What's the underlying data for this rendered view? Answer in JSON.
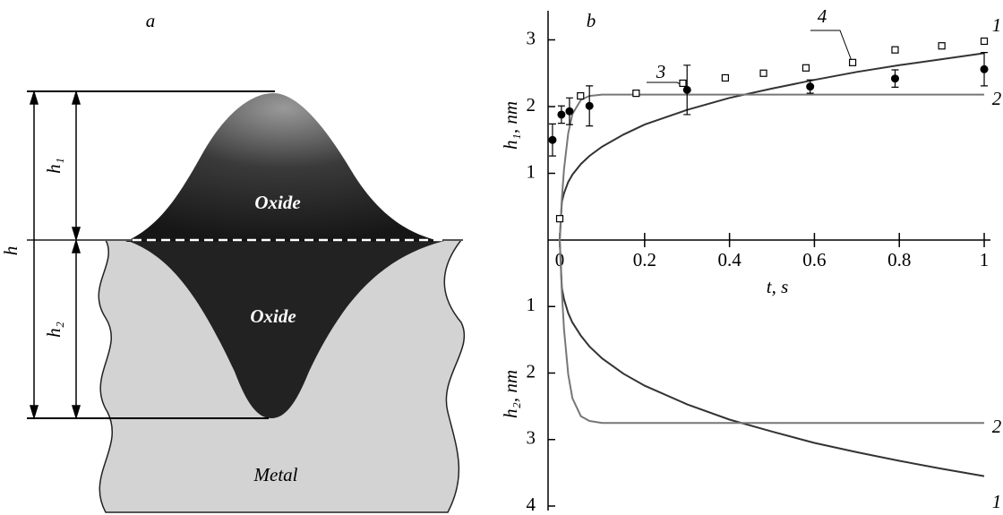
{
  "diagram": {
    "panel_label": "a",
    "labels": {
      "h": "h",
      "h1": "h₁",
      "h2": "h₂",
      "oxide_top": "Oxide",
      "oxide_bottom": "Oxide",
      "metal": "Metal"
    }
  },
  "chart_data": [
    {
      "type": "line",
      "panel_label": "b",
      "ylabel": "h₁, nm",
      "xlabel": "t, s",
      "xlim": [
        -0.03,
        1.02
      ],
      "xticks": [
        0,
        0.2,
        0.4,
        0.6,
        0.8,
        1
      ],
      "ylim": [
        0,
        3.4
      ],
      "yticks": [
        1,
        2,
        3
      ],
      "series": [
        {
          "name": "1",
          "type": "line",
          "color": "#333333",
          "x": [
            0,
            0.005,
            0.01,
            0.02,
            0.03,
            0.05,
            0.07,
            0.1,
            0.15,
            0.2,
            0.3,
            0.4,
            0.5,
            0.6,
            0.7,
            0.8,
            0.9,
            1
          ],
          "values": [
            0,
            0.57,
            0.7,
            0.87,
            0.98,
            1.14,
            1.26,
            1.4,
            1.58,
            1.73,
            1.95,
            2.13,
            2.27,
            2.4,
            2.52,
            2.62,
            2.71,
            2.8
          ]
        },
        {
          "name": "2",
          "type": "line",
          "color": "#777777",
          "x": [
            0,
            0.005,
            0.01,
            0.02,
            0.03,
            0.05,
            0.07,
            0.1,
            0.2,
            0.4,
            0.6,
            0.8,
            1
          ],
          "values": [
            0,
            0.62,
            1.06,
            1.6,
            1.89,
            2.1,
            2.16,
            2.18,
            2.18,
            2.18,
            2.18,
            2.18,
            2.18
          ]
        },
        {
          "name": "3",
          "type": "errorbar",
          "color": "#000000",
          "x": [
            -0.017,
            0.004,
            0.023,
            0.07,
            0.3,
            0.59,
            0.79,
            1.0
          ],
          "values": [
            1.5,
            1.88,
            1.93,
            2.01,
            2.25,
            2.3,
            2.42,
            2.56
          ],
          "errors": [
            0.24,
            0.13,
            0.2,
            0.3,
            0.37,
            0.1,
            0.13,
            0.25
          ]
        },
        {
          "name": "4",
          "type": "scatter",
          "color": "#000000",
          "x": [
            0.0,
            0.049,
            0.18,
            0.29,
            0.39,
            0.48,
            0.58,
            0.69,
            0.79,
            0.9,
            1.0
          ],
          "values": [
            0.32,
            2.16,
            2.2,
            2.35,
            2.43,
            2.5,
            2.58,
            2.66,
            2.85,
            2.91,
            2.98
          ]
        }
      ]
    },
    {
      "type": "line",
      "ylabel": "h₂, nm",
      "xlim": [
        -0.03,
        1.02
      ],
      "ylim": [
        4,
        0
      ],
      "yticks": [
        1,
        2,
        3,
        4
      ],
      "series": [
        {
          "name": "1",
          "type": "line",
          "color": "#333333",
          "x": [
            0,
            0.005,
            0.01,
            0.02,
            0.03,
            0.05,
            0.07,
            0.1,
            0.15,
            0.2,
            0.3,
            0.4,
            0.5,
            0.6,
            0.7,
            0.8,
            0.9,
            1
          ],
          "values": [
            0,
            0.72,
            0.89,
            1.1,
            1.24,
            1.44,
            1.6,
            1.78,
            2.01,
            2.19,
            2.47,
            2.7,
            2.88,
            3.05,
            3.19,
            3.32,
            3.44,
            3.55
          ]
        },
        {
          "name": "2",
          "type": "line",
          "color": "#777777",
          "x": [
            0,
            0.005,
            0.01,
            0.02,
            0.03,
            0.05,
            0.07,
            0.1,
            0.2,
            0.4,
            0.6,
            0.8,
            1
          ],
          "values": [
            0,
            0.78,
            1.34,
            2.02,
            2.38,
            2.65,
            2.72,
            2.75,
            2.75,
            2.75,
            2.75,
            2.75,
            2.75
          ]
        }
      ]
    }
  ]
}
